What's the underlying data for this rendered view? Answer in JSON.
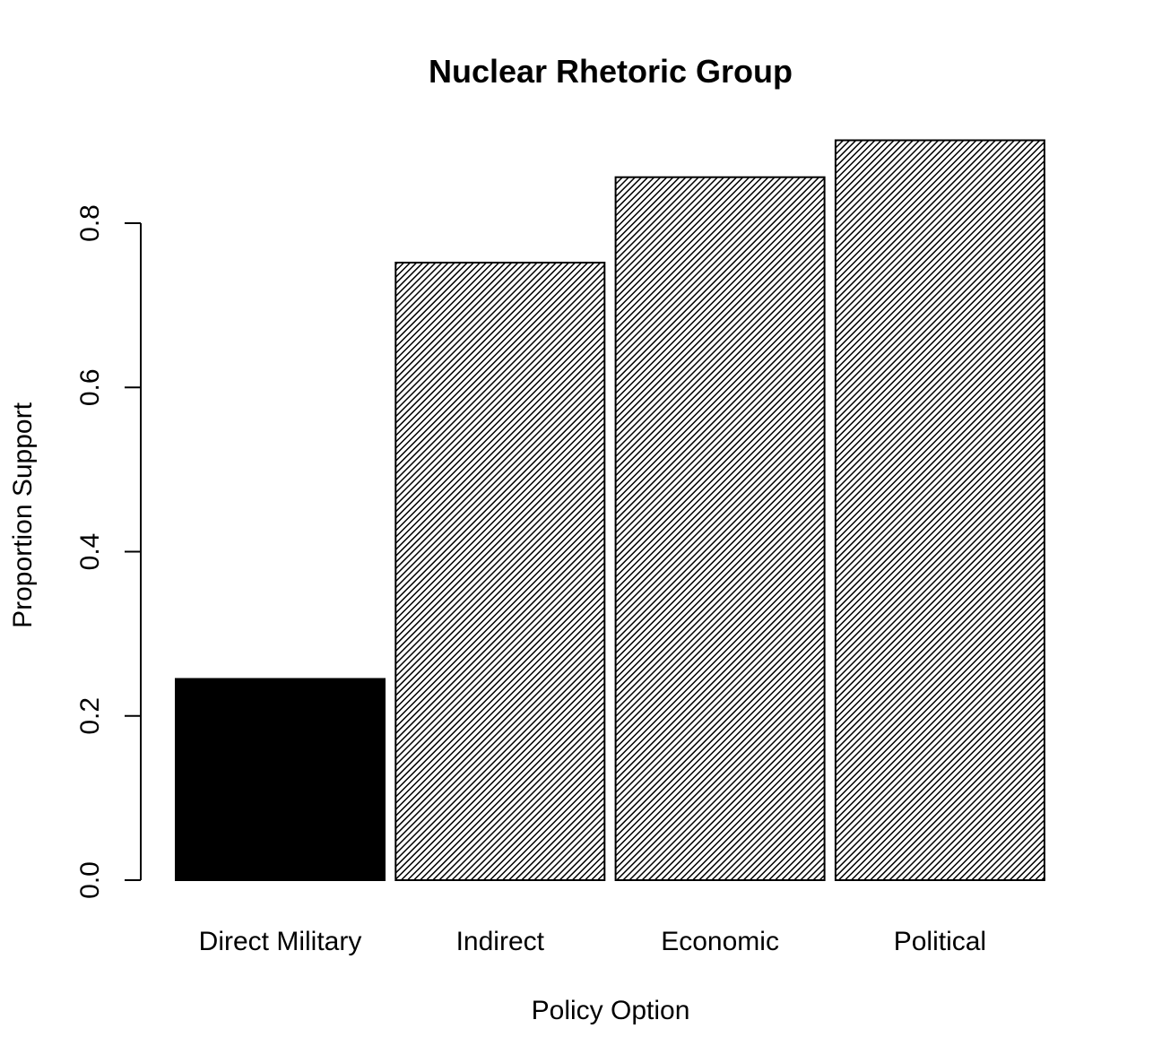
{
  "chart_data": {
    "type": "bar",
    "title": "Nuclear Rhetoric Group",
    "xlabel": "Policy Option",
    "ylabel": "Proportion Support",
    "categories": [
      "Direct Military",
      "Indirect",
      "Economic",
      "Political"
    ],
    "values": [
      0.245,
      0.752,
      0.856,
      0.901
    ],
    "fills": [
      "solid",
      "hatched",
      "hatched",
      "hatched"
    ],
    "yticks": [
      0.0,
      0.2,
      0.4,
      0.6,
      0.8
    ],
    "ytick_labels": [
      "0.0",
      "0.2",
      "0.4",
      "0.6",
      "0.8"
    ],
    "ylim": [
      0,
      0.9
    ],
    "grid": false,
    "legend": "none"
  }
}
